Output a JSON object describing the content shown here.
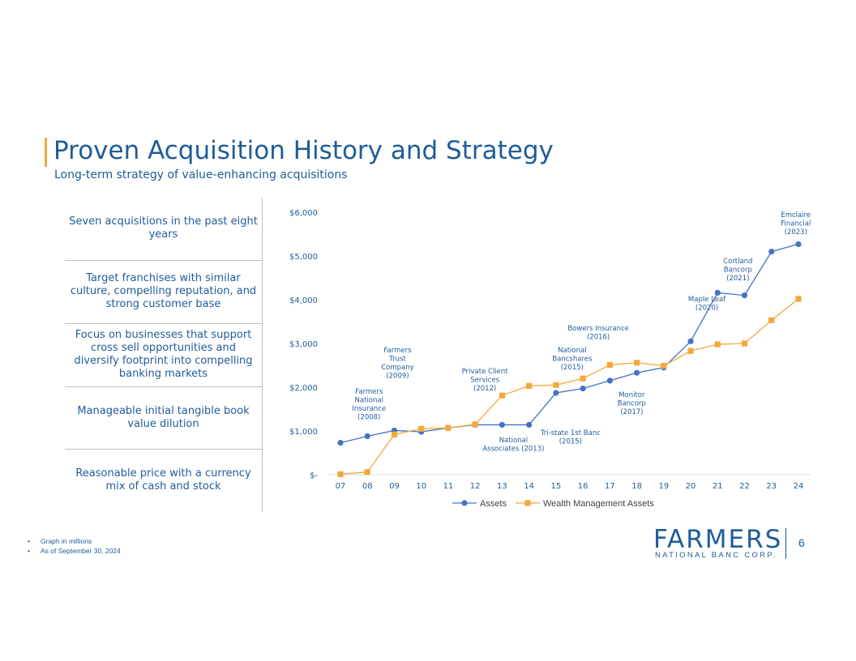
{
  "slide": {
    "title": "Proven Acquisition History and Strategy",
    "subtitle": "Long-term strategy of value-enhancing acquisitions",
    "page_number": "6"
  },
  "strategy_points": [
    "Seven acquisitions in the past eight years",
    "Target franchises with similar culture, compelling reputation, and strong customer base",
    "Focus on businesses that support cross sell opportunities and diversify footprint into compelling banking markets",
    "Manageable initial tangible book value dilution",
    "Reasonable price with a currency mix of cash and stock"
  ],
  "footnotes": [
    "Graph in millions",
    "As of September 30, 2024"
  ],
  "logo": {
    "name": "FARMERS",
    "subtitle": "NATIONAL BANC CORP."
  },
  "colors": {
    "brand_blue": "#1F5C99",
    "assets_line": "#4472C4",
    "wealth_line": "#F2A83B",
    "accent": "#F2A83B"
  },
  "chart_data": {
    "type": "line",
    "categories": [
      "07",
      "08",
      "09",
      "10",
      "11",
      "12",
      "13",
      "14",
      "15",
      "16",
      "17",
      "18",
      "19",
      "20",
      "21",
      "22",
      "23",
      "24"
    ],
    "yticks": [
      "$-",
      "$1,000",
      "$2,000",
      "$3,000",
      "$4,000",
      "$5,000",
      "$6,000"
    ],
    "ylim": [
      0,
      6000
    ],
    "legend_position": "bottom",
    "series": [
      {
        "name": "Assets",
        "color": "#4472C4",
        "marker": "circle",
        "values": [
          730,
          880,
          1010,
          980,
          1070,
          1140,
          1140,
          1140,
          1870,
          1970,
          2150,
          2330,
          2450,
          3050,
          4160,
          4100,
          5100,
          5270
        ]
      },
      {
        "name": "Wealth Management Assets",
        "color": "#F2A83B",
        "marker": "square",
        "values": [
          10,
          60,
          920,
          1050,
          1070,
          1150,
          1810,
          2030,
          2050,
          2200,
          2510,
          2560,
          2490,
          2830,
          2980,
          3000,
          3530,
          4020
        ]
      }
    ],
    "annotations": [
      {
        "lines": [
          "Farmers",
          "National",
          "Insurance",
          "(2008)"
        ],
        "x": "08"
      },
      {
        "lines": [
          "Farmers",
          "Trust",
          "Company",
          "(2009)"
        ],
        "x": "09"
      },
      {
        "lines": [
          "Private Client",
          "Services",
          "(2012)"
        ],
        "x": "12"
      },
      {
        "lines": [
          "National",
          "Associates (2013)"
        ],
        "x": "13"
      },
      {
        "lines": [
          "Tri-state 1st Banc",
          "(2015)"
        ],
        "x": "15"
      },
      {
        "lines": [
          "National",
          "Bancshares",
          "(2015)"
        ],
        "x": "15"
      },
      {
        "lines": [
          "Bowers Insurance",
          "(2016)"
        ],
        "x": "16"
      },
      {
        "lines": [
          "Monitor",
          "Bancorp",
          "(2017)"
        ],
        "x": "17"
      },
      {
        "lines": [
          "Maple Leaf",
          "(2020)"
        ],
        "x": "20"
      },
      {
        "lines": [
          "Cortland",
          "Bancorp",
          "(2021)"
        ],
        "x": "21"
      },
      {
        "lines": [
          "Emclaire",
          "Financial",
          "(2023)"
        ],
        "x": "23"
      }
    ]
  }
}
